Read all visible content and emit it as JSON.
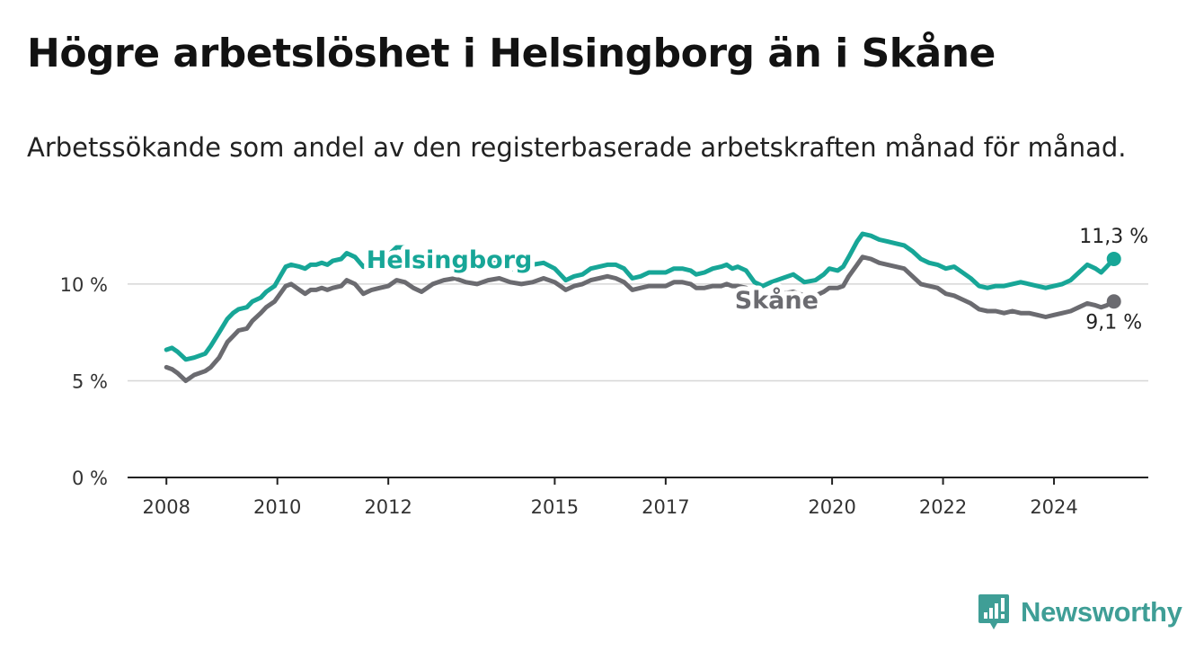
{
  "title": "Högre arbetslöshet i Helsingborg än i Skåne",
  "subtitle": "Arbetssökande som andel av den registerbaserade arbetskraften månad för månad.",
  "brand": {
    "name": "Newsworthy",
    "color": "#3f9e96",
    "logo_icon": "bar-chart-exclamation-icon"
  },
  "chart_data": {
    "type": "line",
    "title": "",
    "xlabel": "",
    "ylabel": "",
    "x_range": [
      2007.3,
      2025.7
    ],
    "ylim": [
      0,
      12.6
    ],
    "y_ticks": [
      {
        "value": 0,
        "label": "0 %"
      },
      {
        "value": 5,
        "label": "5 %"
      },
      {
        "value": 10,
        "label": "10 %"
      }
    ],
    "x_ticks": [
      {
        "value": 2008,
        "label": "2008"
      },
      {
        "value": 2010,
        "label": "2010"
      },
      {
        "value": 2012,
        "label": "2012"
      },
      {
        "value": 2015,
        "label": "2015"
      },
      {
        "value": 2017,
        "label": "2017"
      },
      {
        "value": 2020,
        "label": "2020"
      },
      {
        "value": 2022,
        "label": "2022"
      },
      {
        "value": 2024,
        "label": "2024"
      }
    ],
    "grid": "horizontal",
    "series": [
      {
        "name": "Helsingborg",
        "color": "#17a697",
        "label": "Helsingborg",
        "end_label": "11,3 %",
        "points": [
          [
            2008.0,
            6.6
          ],
          [
            2008.1,
            6.7
          ],
          [
            2008.2,
            6.5
          ],
          [
            2008.35,
            6.1
          ],
          [
            2008.5,
            6.2
          ],
          [
            2008.7,
            6.4
          ],
          [
            2008.8,
            6.8
          ],
          [
            2008.95,
            7.5
          ],
          [
            2009.1,
            8.2
          ],
          [
            2009.2,
            8.5
          ],
          [
            2009.3,
            8.7
          ],
          [
            2009.45,
            8.8
          ],
          [
            2009.55,
            9.1
          ],
          [
            2009.7,
            9.3
          ],
          [
            2009.8,
            9.6
          ],
          [
            2009.95,
            9.9
          ],
          [
            2010.05,
            10.4
          ],
          [
            2010.15,
            10.9
          ],
          [
            2010.25,
            11.0
          ],
          [
            2010.4,
            10.9
          ],
          [
            2010.5,
            10.8
          ],
          [
            2010.6,
            11.0
          ],
          [
            2010.7,
            11.0
          ],
          [
            2010.8,
            11.1
          ],
          [
            2010.9,
            11.0
          ],
          [
            2011.0,
            11.2
          ],
          [
            2011.15,
            11.3
          ],
          [
            2011.25,
            11.6
          ],
          [
            2011.4,
            11.4
          ],
          [
            2011.55,
            10.9
          ],
          [
            2011.7,
            11.2
          ],
          [
            2011.85,
            11.3
          ],
          [
            2012.0,
            11.5
          ],
          [
            2012.15,
            11.9
          ],
          [
            2012.3,
            11.9
          ],
          [
            2012.45,
            11.5
          ],
          [
            2012.6,
            11.2
          ],
          [
            2012.8,
            11.2
          ],
          [
            2013.0,
            11.3
          ],
          [
            2013.2,
            11.0
          ],
          [
            2013.4,
            10.8
          ],
          [
            2013.6,
            10.9
          ],
          [
            2013.8,
            11.2
          ],
          [
            2014.0,
            11.0
          ],
          [
            2014.2,
            10.8
          ],
          [
            2014.4,
            10.7
          ],
          [
            2014.6,
            11.0
          ],
          [
            2014.8,
            11.1
          ],
          [
            2015.0,
            10.8
          ],
          [
            2015.1,
            10.5
          ],
          [
            2015.2,
            10.2
          ],
          [
            2015.35,
            10.4
          ],
          [
            2015.5,
            10.5
          ],
          [
            2015.65,
            10.8
          ],
          [
            2015.8,
            10.9
          ],
          [
            2015.95,
            11.0
          ],
          [
            2016.1,
            11.0
          ],
          [
            2016.25,
            10.8
          ],
          [
            2016.4,
            10.3
          ],
          [
            2016.55,
            10.4
          ],
          [
            2016.7,
            10.6
          ],
          [
            2016.85,
            10.6
          ],
          [
            2017.0,
            10.6
          ],
          [
            2017.15,
            10.8
          ],
          [
            2017.3,
            10.8
          ],
          [
            2017.45,
            10.7
          ],
          [
            2017.55,
            10.5
          ],
          [
            2017.7,
            10.6
          ],
          [
            2017.85,
            10.8
          ],
          [
            2018.0,
            10.9
          ],
          [
            2018.1,
            11.0
          ],
          [
            2018.2,
            10.8
          ],
          [
            2018.3,
            10.9
          ],
          [
            2018.45,
            10.7
          ],
          [
            2018.6,
            10.1
          ],
          [
            2018.75,
            9.9
          ],
          [
            2018.9,
            10.1
          ],
          [
            2019.1,
            10.3
          ],
          [
            2019.3,
            10.5
          ],
          [
            2019.5,
            10.1
          ],
          [
            2019.7,
            10.2
          ],
          [
            2019.85,
            10.5
          ],
          [
            2019.95,
            10.8
          ],
          [
            2020.1,
            10.7
          ],
          [
            2020.2,
            10.9
          ],
          [
            2020.3,
            11.4
          ],
          [
            2020.45,
            12.2
          ],
          [
            2020.55,
            12.6
          ],
          [
            2020.7,
            12.5
          ],
          [
            2020.85,
            12.3
          ],
          [
            2021.0,
            12.2
          ],
          [
            2021.15,
            12.1
          ],
          [
            2021.3,
            12.0
          ],
          [
            2021.45,
            11.7
          ],
          [
            2021.6,
            11.3
          ],
          [
            2021.75,
            11.1
          ],
          [
            2021.9,
            11.0
          ],
          [
            2022.05,
            10.8
          ],
          [
            2022.2,
            10.9
          ],
          [
            2022.35,
            10.6
          ],
          [
            2022.5,
            10.3
          ],
          [
            2022.65,
            9.9
          ],
          [
            2022.8,
            9.8
          ],
          [
            2022.95,
            9.9
          ],
          [
            2023.1,
            9.9
          ],
          [
            2023.25,
            10.0
          ],
          [
            2023.4,
            10.1
          ],
          [
            2023.55,
            10.0
          ],
          [
            2023.7,
            9.9
          ],
          [
            2023.85,
            9.8
          ],
          [
            2024.0,
            9.9
          ],
          [
            2024.15,
            10.0
          ],
          [
            2024.3,
            10.2
          ],
          [
            2024.45,
            10.6
          ],
          [
            2024.6,
            11.0
          ],
          [
            2024.75,
            10.8
          ],
          [
            2024.85,
            10.6
          ],
          [
            2024.95,
            10.9
          ],
          [
            2025.08,
            11.3
          ]
        ]
      },
      {
        "name": "Skåne",
        "color": "#6b6b70",
        "label": "Skåne",
        "end_label": "9,1 %",
        "points": [
          [
            2008.0,
            5.7
          ],
          [
            2008.1,
            5.6
          ],
          [
            2008.2,
            5.4
          ],
          [
            2008.35,
            5.0
          ],
          [
            2008.5,
            5.3
          ],
          [
            2008.7,
            5.5
          ],
          [
            2008.8,
            5.7
          ],
          [
            2008.95,
            6.2
          ],
          [
            2009.1,
            7.0
          ],
          [
            2009.2,
            7.3
          ],
          [
            2009.3,
            7.6
          ],
          [
            2009.45,
            7.7
          ],
          [
            2009.55,
            8.1
          ],
          [
            2009.7,
            8.5
          ],
          [
            2009.8,
            8.8
          ],
          [
            2009.95,
            9.1
          ],
          [
            2010.05,
            9.5
          ],
          [
            2010.15,
            9.9
          ],
          [
            2010.25,
            10.0
          ],
          [
            2010.4,
            9.7
          ],
          [
            2010.5,
            9.5
          ],
          [
            2010.6,
            9.7
          ],
          [
            2010.7,
            9.7
          ],
          [
            2010.8,
            9.8
          ],
          [
            2010.9,
            9.7
          ],
          [
            2011.0,
            9.8
          ],
          [
            2011.15,
            9.9
          ],
          [
            2011.25,
            10.2
          ],
          [
            2011.4,
            10.0
          ],
          [
            2011.55,
            9.5
          ],
          [
            2011.7,
            9.7
          ],
          [
            2011.85,
            9.8
          ],
          [
            2012.0,
            9.9
          ],
          [
            2012.15,
            10.2
          ],
          [
            2012.3,
            10.1
          ],
          [
            2012.45,
            9.8
          ],
          [
            2012.6,
            9.6
          ],
          [
            2012.8,
            10.0
          ],
          [
            2013.0,
            10.2
          ],
          [
            2013.2,
            10.3
          ],
          [
            2013.4,
            10.1
          ],
          [
            2013.6,
            10.0
          ],
          [
            2013.8,
            10.2
          ],
          [
            2014.0,
            10.3
          ],
          [
            2014.2,
            10.1
          ],
          [
            2014.4,
            10.0
          ],
          [
            2014.6,
            10.1
          ],
          [
            2014.8,
            10.3
          ],
          [
            2015.0,
            10.1
          ],
          [
            2015.1,
            9.9
          ],
          [
            2015.2,
            9.7
          ],
          [
            2015.35,
            9.9
          ],
          [
            2015.5,
            10.0
          ],
          [
            2015.65,
            10.2
          ],
          [
            2015.8,
            10.3
          ],
          [
            2015.95,
            10.4
          ],
          [
            2016.1,
            10.3
          ],
          [
            2016.25,
            10.1
          ],
          [
            2016.4,
            9.7
          ],
          [
            2016.55,
            9.8
          ],
          [
            2016.7,
            9.9
          ],
          [
            2016.85,
            9.9
          ],
          [
            2017.0,
            9.9
          ],
          [
            2017.15,
            10.1
          ],
          [
            2017.3,
            10.1
          ],
          [
            2017.45,
            10.0
          ],
          [
            2017.55,
            9.8
          ],
          [
            2017.7,
            9.8
          ],
          [
            2017.85,
            9.9
          ],
          [
            2018.0,
            9.9
          ],
          [
            2018.1,
            10.0
          ],
          [
            2018.2,
            9.9
          ],
          [
            2018.3,
            9.9
          ],
          [
            2018.45,
            9.8
          ],
          [
            2018.6,
            9.4
          ],
          [
            2018.75,
            9.2
          ],
          [
            2018.9,
            9.3
          ],
          [
            2019.1,
            9.5
          ],
          [
            2019.3,
            9.6
          ],
          [
            2019.5,
            9.4
          ],
          [
            2019.7,
            9.4
          ],
          [
            2019.85,
            9.6
          ],
          [
            2019.95,
            9.8
          ],
          [
            2020.1,
            9.8
          ],
          [
            2020.2,
            9.9
          ],
          [
            2020.3,
            10.4
          ],
          [
            2020.45,
            11.0
          ],
          [
            2020.55,
            11.4
          ],
          [
            2020.7,
            11.3
          ],
          [
            2020.85,
            11.1
          ],
          [
            2021.0,
            11.0
          ],
          [
            2021.15,
            10.9
          ],
          [
            2021.3,
            10.8
          ],
          [
            2021.45,
            10.4
          ],
          [
            2021.6,
            10.0
          ],
          [
            2021.75,
            9.9
          ],
          [
            2021.9,
            9.8
          ],
          [
            2022.05,
            9.5
          ],
          [
            2022.2,
            9.4
          ],
          [
            2022.35,
            9.2
          ],
          [
            2022.5,
            9.0
          ],
          [
            2022.65,
            8.7
          ],
          [
            2022.8,
            8.6
          ],
          [
            2022.95,
            8.6
          ],
          [
            2023.1,
            8.5
          ],
          [
            2023.25,
            8.6
          ],
          [
            2023.4,
            8.5
          ],
          [
            2023.55,
            8.5
          ],
          [
            2023.7,
            8.4
          ],
          [
            2023.85,
            8.3
          ],
          [
            2024.0,
            8.4
          ],
          [
            2024.15,
            8.5
          ],
          [
            2024.3,
            8.6
          ],
          [
            2024.45,
            8.8
          ],
          [
            2024.6,
            9.0
          ],
          [
            2024.75,
            8.9
          ],
          [
            2024.85,
            8.8
          ],
          [
            2024.95,
            8.9
          ],
          [
            2025.08,
            9.1
          ]
        ]
      }
    ]
  }
}
